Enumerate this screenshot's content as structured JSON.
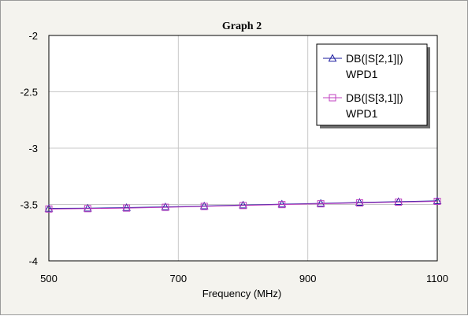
{
  "chart_data": {
    "type": "line",
    "title": "Graph 2",
    "xlabel": "Frequency (MHz)",
    "ylabel": "",
    "xlim": [
      500,
      1100
    ],
    "ylim": [
      -4,
      -2
    ],
    "xticks": [
      "500",
      "700",
      "900",
      "1100"
    ],
    "yticks": [
      "-2",
      "-2.5",
      "-3",
      "-3.5",
      "-4"
    ],
    "grid": true,
    "legend_position": "top-right",
    "series": [
      {
        "name": "DB(|S[2,1]|)",
        "source": "WPD1",
        "color": "#1a1a9e",
        "marker": "triangle",
        "x": [
          500,
          560,
          620,
          680,
          740,
          800,
          860,
          920,
          980,
          1040,
          1100
        ],
        "y": [
          -3.535,
          -3.533,
          -3.528,
          -3.521,
          -3.513,
          -3.505,
          -3.497,
          -3.49,
          -3.482,
          -3.475,
          -3.468
        ]
      },
      {
        "name": "DB(|S[3,1]|)",
        "source": "WPD1",
        "color": "#c040c0",
        "marker": "square",
        "x": [
          500,
          560,
          620,
          680,
          740,
          800,
          860,
          920,
          980,
          1040,
          1100
        ],
        "y": [
          -3.54,
          -3.537,
          -3.532,
          -3.525,
          -3.517,
          -3.509,
          -3.501,
          -3.494,
          -3.486,
          -3.479,
          -3.472
        ]
      }
    ]
  }
}
